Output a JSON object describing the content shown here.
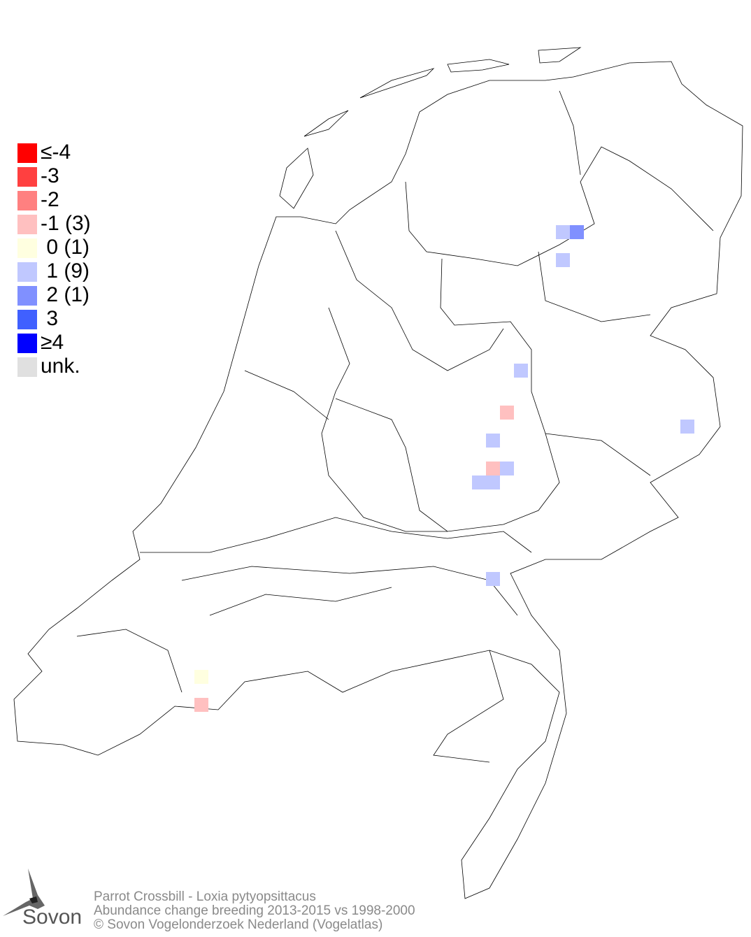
{
  "legend": [
    {
      "label": "≤-4",
      "color": "#ff0000"
    },
    {
      "label": "-3",
      "color": "#ff4040"
    },
    {
      "label": "-2",
      "color": "#ff8080"
    },
    {
      "label": "-1 (3)",
      "color": "#ffc0c0"
    },
    {
      "label": " 0 (1)",
      "color": "#ffffe0"
    },
    {
      "label": " 1 (9)",
      "color": "#c0c8ff"
    },
    {
      "label": " 2 (1)",
      "color": "#8090ff"
    },
    {
      "label": " 3",
      "color": "#4060ff"
    },
    {
      "label": "≥4",
      "color": "#0000ff"
    },
    {
      "label": "unk.",
      "color": "#e0e0e0"
    }
  ],
  "footer": {
    "species": "Parrot Crossbill - Loxia pytyopsittacus",
    "subtitle": "Abundance change breeding  2013-2015 vs 1998-2000",
    "copyright": "© Sovon Vogelonderzoek Nederland (Vogelatlas)"
  },
  "logo": {
    "text": "Sovon"
  }
}
